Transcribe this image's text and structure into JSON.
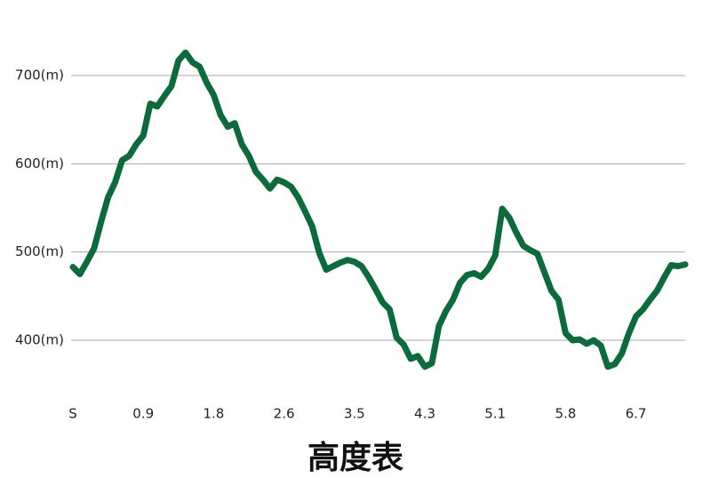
{
  "chart_data": {
    "type": "line",
    "title": "高度表",
    "categories": [
      "S",
      null,
      null,
      null,
      null,
      null,
      null,
      null,
      null,
      null,
      "0.9",
      null,
      null,
      null,
      null,
      null,
      null,
      null,
      null,
      null,
      "1.8",
      null,
      null,
      null,
      null,
      null,
      null,
      null,
      null,
      null,
      "2.6",
      null,
      null,
      null,
      null,
      null,
      null,
      null,
      null,
      null,
      "3.5",
      null,
      null,
      null,
      null,
      null,
      null,
      null,
      null,
      null,
      "4.3",
      null,
      null,
      null,
      null,
      null,
      null,
      null,
      null,
      null,
      "5.1",
      null,
      null,
      null,
      null,
      null,
      null,
      null,
      null,
      null,
      "5.8",
      null,
      null,
      null,
      null,
      null,
      null,
      null,
      null,
      null,
      "6.7",
      null,
      null,
      null,
      null,
      null,
      null,
      null
    ],
    "values": [
      483,
      475,
      489,
      504,
      534,
      562,
      579,
      604,
      609,
      622,
      632,
      668,
      665,
      677,
      688,
      717,
      726,
      715,
      710,
      692,
      678,
      655,
      642,
      646,
      622,
      609,
      591,
      582,
      572,
      582,
      579,
      574,
      562,
      546,
      529,
      499,
      480,
      484,
      488,
      491,
      489,
      484,
      472,
      458,
      443,
      435,
      403,
      395,
      379,
      382,
      370,
      374,
      416,
      433,
      446,
      465,
      474,
      476,
      472,
      481,
      496,
      549,
      539,
      522,
      507,
      502,
      498,
      477,
      456,
      446,
      408,
      400,
      401,
      396,
      400,
      394,
      370,
      373,
      385,
      408,
      427,
      435,
      446,
      456,
      471,
      485,
      484,
      486
    ],
    "color": "#0b6b3a",
    "ylim": [
      350,
      750
    ],
    "yticks": [
      {
        "value": 400,
        "label": "400(m)"
      },
      {
        "value": 500,
        "label": "500(m)"
      },
      {
        "value": 600,
        "label": "600(m)"
      },
      {
        "value": 700,
        "label": "700(m)"
      }
    ],
    "grid": true
  }
}
